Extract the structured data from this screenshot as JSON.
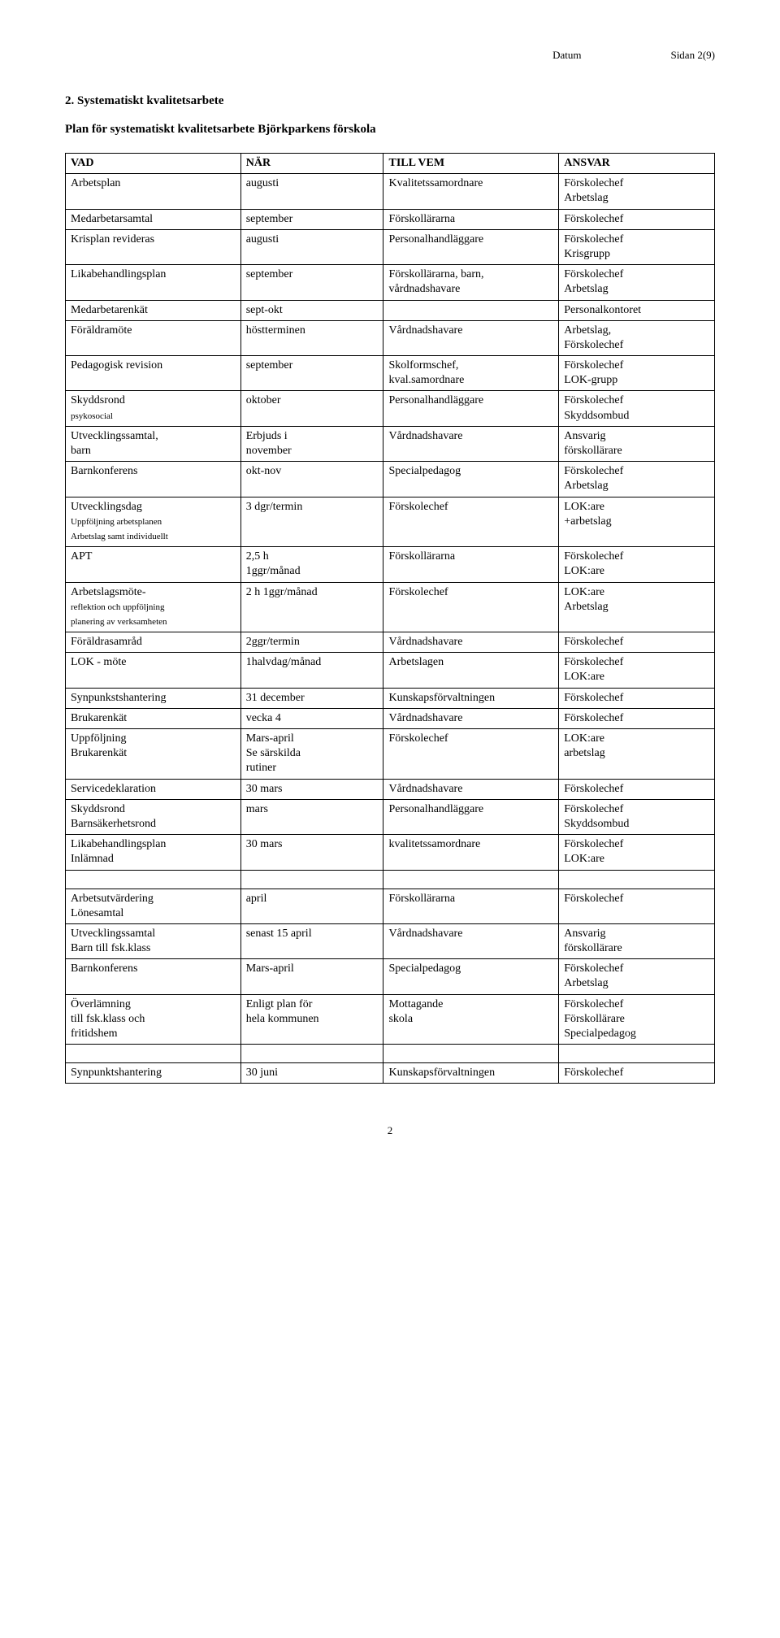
{
  "header": {
    "datum_label": "Datum",
    "sidan_label": "Sidan 2(9)"
  },
  "section_title": "2. Systematiskt kvalitetsarbete",
  "plan_title": "Plan för systematiskt kvalitetsarbete Björkparkens förskola",
  "table": {
    "head": {
      "vad": "VAD",
      "nar": "NÄR",
      "till_vem": "TILL VEM",
      "ansvar": "ANSVAR"
    },
    "rows": [
      {
        "vad": "Arbetsplan",
        "nar": "augusti",
        "till": "Kvalitetssamordnare",
        "ansvar": "Förskolechef\nArbetslag"
      },
      {
        "vad": "Medarbetarsamtal",
        "nar": "september",
        "till": "Förskollärarna",
        "ansvar": "Förskolechef"
      },
      {
        "vad": "Krisplan revideras",
        "nar": "augusti",
        "till": "Personalhandläggare",
        "ansvar": "Förskolechef\nKrisgrupp"
      },
      {
        "vad": "Likabehandlingsplan",
        "nar": "september",
        "till": "Förskollärarna, barn,\nvårdnadshavare",
        "ansvar": "Förskolechef\nArbetslag"
      },
      {
        "vad": "Medarbetarenkät",
        "nar": "sept-okt",
        "till": "",
        "ansvar": "Personalkontoret"
      },
      {
        "vad": "Föräldramöte",
        "nar": "höstterminen",
        "till": "Vårdnadshavare",
        "ansvar": "Arbetslag,\nFörskolechef"
      },
      {
        "vad": "Pedagogisk revision",
        "nar": "september",
        "till": "Skolformschef,\nkval.samordnare",
        "ansvar": "Förskolechef\nLOK-grupp"
      },
      {
        "vad": "Skyddsrond",
        "vad_sub": "psykosocial",
        "nar": "oktober",
        "till": "Personalhandläggare",
        "ansvar": "Förskolechef\nSkyddsombud"
      },
      {
        "vad": "Utvecklingssamtal,\nbarn",
        "nar": "Erbjuds i\nnovember",
        "till": "Vårdnadshavare",
        "ansvar": "Ansvarig\nförskollärare"
      },
      {
        "vad": "Barnkonferens",
        "nar": "okt-nov",
        "till": "Specialpedagog",
        "ansvar": "Förskolechef\nArbetslag"
      },
      {
        "vad": "Utvecklingsdag",
        "vad_sub": "Uppföljning arbetsplanen\nArbetslag samt individuellt",
        "nar": "3 dgr/termin",
        "till": "Förskolechef",
        "ansvar": "LOK:are\n+arbetslag"
      },
      {
        "vad": "APT",
        "nar": "2,5 h\n1ggr/månad",
        "till": "Förskollärarna",
        "ansvar": "Förskolechef\nLOK:are"
      },
      {
        "vad": "Arbetslagsmöte-",
        "vad_sub": "reflektion och uppföljning\nplanering av verksamheten",
        "nar": "2 h 1ggr/månad",
        "till": "Förskolechef",
        "ansvar": "LOK:are\nArbetslag"
      },
      {
        "vad": "Föräldrasamråd",
        "nar": " 2ggr/termin",
        "till": "Vårdnadshavare",
        "ansvar": "Förskolechef"
      },
      {
        "vad": "LOK - möte",
        "nar": "1halvdag/månad",
        "till": "Arbetslagen",
        "ansvar": "Förskolechef\nLOK:are"
      },
      {
        "vad": "Synpunkstshantering",
        "nar": "31 december",
        "till": "Kunskapsförvaltningen",
        "ansvar": "Förskolechef"
      },
      {
        "vad": "Brukarenkät",
        "nar": "vecka 4",
        "till": "Vårdnadshavare",
        "ansvar": "Förskolechef"
      },
      {
        "vad": "Uppföljning\nBrukarenkät",
        "nar": "Mars-april\nSe särskilda\nrutiner",
        "till": "Förskolechef",
        "ansvar": "LOK:are\narbetslag"
      },
      {
        "vad": "Servicedeklaration",
        "nar": "30 mars",
        "till": "Vårdnadshavare",
        "ansvar": "Förskolechef"
      },
      {
        "vad": "Skyddsrond\nBarnsäkerhetsrond",
        "nar": "mars",
        "till": "Personalhandläggare",
        "ansvar": "Förskolechef\nSkyddsombud"
      },
      {
        "vad": "Likabehandlingsplan\nInlämnad",
        "nar": "30 mars",
        "till": "kvalitetssamordnare",
        "ansvar": "Förskolechef\nLOK:are"
      },
      {
        "spacer": true
      },
      {
        "vad": "Arbetsutvärdering\nLönesamtal",
        "nar": "april",
        "till": "Förskollärarna",
        "ansvar": "Förskolechef"
      },
      {
        "vad": "Utvecklingssamtal\nBarn till fsk.klass",
        "nar": "senast 15 april",
        "till": "Vårdnadshavare",
        "ansvar": "Ansvarig\nförskollärare"
      },
      {
        "vad": "Barnkonferens",
        "nar": "Mars-april",
        "till": "Specialpedagog",
        "ansvar": "Förskolechef\nArbetslag"
      },
      {
        "vad": "Överlämning\ntill fsk.klass och\nfritidshem",
        "nar": "Enligt plan för\nhela kommunen",
        "till": "Mottagande\nskola",
        "ansvar": "Förskolechef\nFörskollärare\nSpecialpedagog"
      },
      {
        "spacer": true
      },
      {
        "vad": "Synpunktshantering",
        "nar": "30 juni",
        "till": "Kunskapsförvaltningen",
        "ansvar": "Förskolechef"
      }
    ]
  },
  "page_number": "2"
}
